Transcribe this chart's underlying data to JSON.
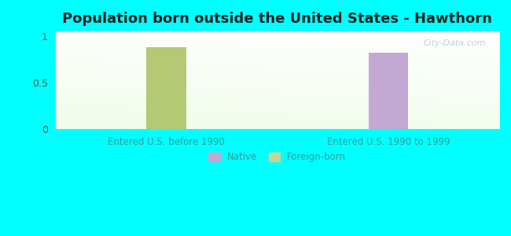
{
  "title": "Population born outside the United States - Hawthorn",
  "categories": [
    "Entered U.S. before 1990",
    "Entered U.S. 1990 to 1999"
  ],
  "bar_values": [
    0.88,
    0.82
  ],
  "bar_colors": [
    "#b5c873",
    "#c4a8d4"
  ],
  "bar_width": 0.18,
  "ylim": [
    0,
    1.05
  ],
  "yticks": [
    0,
    0.5,
    1
  ],
  "ytick_labels": [
    "0",
    "0.5",
    "1"
  ],
  "background_color": "#00ffff",
  "title_color": "#222222",
  "tick_color": "#555555",
  "label_color": "#3a9a9a",
  "legend_native_color": "#c4a8d4",
  "legend_foreign_color": "#c8d490",
  "legend_labels": [
    "Native",
    "Foreign-born"
  ],
  "watermark": "City-Data.com",
  "title_fontsize": 13,
  "label_fontsize": 8.5,
  "tick_fontsize": 9
}
